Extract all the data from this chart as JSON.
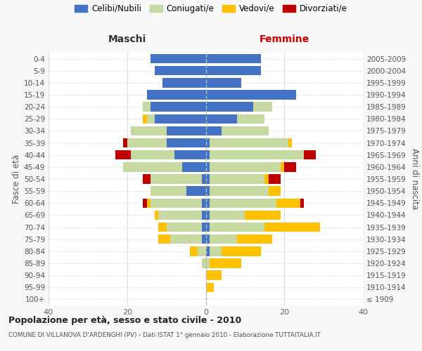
{
  "age_groups": [
    "100+",
    "95-99",
    "90-94",
    "85-89",
    "80-84",
    "75-79",
    "70-74",
    "65-69",
    "60-64",
    "55-59",
    "50-54",
    "45-49",
    "40-44",
    "35-39",
    "30-34",
    "25-29",
    "20-24",
    "15-19",
    "10-14",
    "5-9",
    "0-4"
  ],
  "birth_years": [
    "≤ 1909",
    "1910-1914",
    "1915-1919",
    "1920-1924",
    "1925-1929",
    "1930-1934",
    "1935-1939",
    "1940-1944",
    "1945-1949",
    "1950-1954",
    "1955-1959",
    "1960-1964",
    "1965-1969",
    "1970-1974",
    "1975-1979",
    "1980-1984",
    "1985-1989",
    "1990-1994",
    "1995-1999",
    "2000-2004",
    "2005-2009"
  ],
  "maschi_celibi": [
    0,
    0,
    0,
    0,
    0,
    1,
    1,
    1,
    1,
    5,
    1,
    6,
    8,
    10,
    10,
    13,
    14,
    15,
    11,
    13,
    14
  ],
  "maschi_coniugati": [
    0,
    0,
    0,
    1,
    2,
    8,
    9,
    11,
    13,
    9,
    13,
    15,
    11,
    10,
    9,
    2,
    2,
    0,
    0,
    0,
    0
  ],
  "maschi_vedovi": [
    0,
    0,
    0,
    0,
    2,
    3,
    2,
    1,
    1,
    0,
    0,
    0,
    0,
    0,
    0,
    1,
    0,
    0,
    0,
    0,
    0
  ],
  "maschi_divorziati": [
    0,
    0,
    0,
    0,
    0,
    0,
    0,
    0,
    1,
    0,
    2,
    0,
    4,
    1,
    0,
    0,
    0,
    0,
    0,
    0,
    0
  ],
  "femmine_celibi": [
    0,
    0,
    0,
    0,
    1,
    1,
    1,
    1,
    1,
    1,
    1,
    1,
    1,
    1,
    4,
    8,
    12,
    23,
    9,
    14,
    14
  ],
  "femmine_coniugati": [
    0,
    0,
    0,
    1,
    3,
    7,
    14,
    9,
    17,
    15,
    14,
    18,
    24,
    20,
    12,
    7,
    5,
    0,
    0,
    0,
    0
  ],
  "femmine_vedovi": [
    0,
    2,
    4,
    8,
    10,
    9,
    14,
    9,
    6,
    3,
    1,
    1,
    0,
    1,
    0,
    0,
    0,
    0,
    0,
    0,
    0
  ],
  "femmine_divorziati": [
    0,
    0,
    0,
    0,
    0,
    0,
    0,
    0,
    1,
    0,
    3,
    3,
    3,
    0,
    0,
    0,
    0,
    0,
    0,
    0,
    0
  ],
  "color_celibi": "#4472c4",
  "color_coniugati": "#c5d9a0",
  "color_vedovi": "#ffc000",
  "color_divorziati": "#c00000",
  "title": "Popolazione per età, sesso e stato civile - 2010",
  "subtitle": "COMUNE DI VILLANOVA D'ARDENGHI (PV) - Dati ISTAT 1° gennaio 2010 - Elaborazione TUTTAITALIA.IT",
  "xlabel_left": "Maschi",
  "xlabel_right": "Femmine",
  "ylabel_left": "Fasce di età",
  "ylabel_right": "Anni di nascita",
  "legend_labels": [
    "Celibi/Nubili",
    "Coniugati/e",
    "Vedovi/e",
    "Divorziati/e"
  ],
  "xlim": 40,
  "bg_color": "#f7f7f7",
  "plot_bg_color": "#ffffff",
  "grid_color": "#dddddd"
}
